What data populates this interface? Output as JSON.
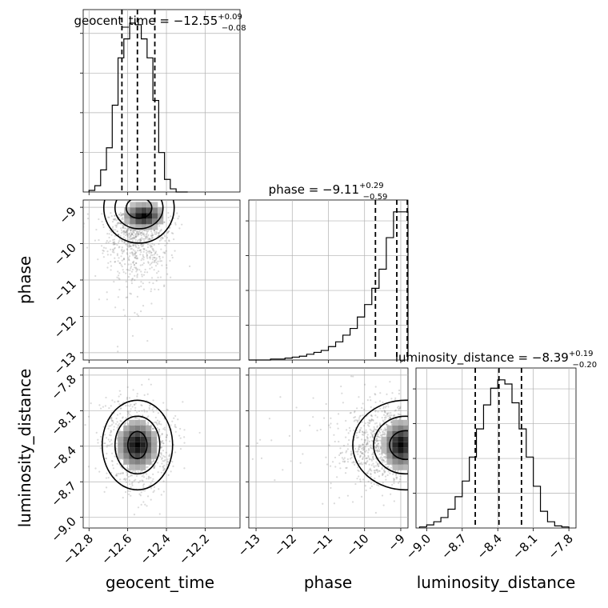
{
  "chart_data": {
    "type": "corner",
    "parameters": [
      "geocent_time",
      "phase",
      "luminosity_distance"
    ],
    "titles": [
      {
        "param": "geocent_time",
        "prefix": "geocent_time = ",
        "median": "−12.55",
        "plus": "+0.09",
        "minus": "−0.08"
      },
      {
        "param": "phase",
        "prefix": "phase = ",
        "median": "−9.11",
        "plus": "+0.29",
        "minus": "−0.59"
      },
      {
        "param": "luminosity_distance",
        "prefix": "luminosity_distance = ",
        "median": "−8.39",
        "plus": "+0.19",
        "minus": "−0.20"
      }
    ],
    "axes": {
      "geocent_time": {
        "range": [
          -12.83,
          -12.02
        ],
        "ticks": [
          -12.8,
          -12.6,
          -12.4,
          -12.2
        ],
        "tick_labels": [
          "−12.8",
          "−12.6",
          "−12.4",
          "−12.2"
        ],
        "quantiles": [
          -12.63,
          -12.55,
          -12.46
        ]
      },
      "phase": {
        "range": [
          -13.2,
          -8.8
        ],
        "ticks": [
          -13,
          -12,
          -11,
          -10,
          -9
        ],
        "tick_labels": [
          "−13",
          "−12",
          "−11",
          "−10",
          "−9"
        ],
        "quantiles": [
          -9.7,
          -9.11,
          -8.82
        ]
      },
      "luminosity_distance": {
        "range": [
          -9.09,
          -7.74
        ],
        "ticks": [
          -9.0,
          -8.7,
          -8.4,
          -8.1,
          -7.8
        ],
        "tick_labels": [
          "−9.0",
          "−8.7",
          "−8.4",
          "−8.1",
          "−7.8"
        ],
        "quantiles": [
          -8.59,
          -8.39,
          -8.2
        ]
      }
    },
    "histograms": {
      "geocent_time": {
        "bin_edges": [
          -12.8,
          -12.77,
          -12.74,
          -12.71,
          -12.68,
          -12.65,
          -12.62,
          -12.59,
          -12.56,
          -12.53,
          -12.5,
          -12.47,
          -12.44,
          -12.41,
          -12.38,
          -12.35,
          -12.32,
          -12.29
        ],
        "counts": [
          1,
          4,
          14,
          28,
          55,
          85,
          97,
          107,
          106,
          97,
          85,
          58,
          25,
          8,
          2,
          0,
          0
        ]
      },
      "phase": {
        "bin_edges": [
          -13.2,
          -13.0,
          -12.8,
          -12.6,
          -12.4,
          -12.2,
          -12.0,
          -11.8,
          -11.6,
          -11.4,
          -11.2,
          -11.0,
          -10.8,
          -10.6,
          -10.4,
          -10.2,
          -10.0,
          -9.8,
          -9.6,
          -9.4,
          -9.2,
          -9.0,
          -8.8
        ],
        "counts": [
          0,
          0,
          0,
          1,
          1,
          2,
          3,
          4,
          6,
          8,
          10,
          14,
          19,
          26,
          33,
          45,
          58,
          75,
          95,
          128,
          155,
          155
        ]
      },
      "luminosity_distance": {
        "bin_edges": [
          -9.06,
          -9.0,
          -8.94,
          -8.88,
          -8.82,
          -8.76,
          -8.7,
          -8.64,
          -8.58,
          -8.52,
          -8.46,
          -8.4,
          -8.34,
          -8.28,
          -8.22,
          -8.16,
          -8.1,
          -8.04,
          -7.98,
          -7.92,
          -7.86,
          -7.8
        ],
        "counts": [
          1,
          3,
          6,
          10,
          18,
          30,
          45,
          68,
          95,
          118,
          134,
          142,
          138,
          120,
          95,
          68,
          40,
          16,
          6,
          2,
          1
        ]
      }
    },
    "scatter_centers": {
      "phase_vs_geocent_time": {
        "x": -12.55,
        "y": -9.15
      },
      "luminosity_distance_vs_geocent_time": {
        "x": -12.55,
        "y": -8.39
      },
      "luminosity_distance_vs_phase": {
        "x": -9.0,
        "y": -8.39
      }
    },
    "axis_labels": {
      "x": [
        "geocent_time",
        "phase",
        "luminosity_distance"
      ],
      "y": [
        "phase",
        "luminosity_distance"
      ]
    },
    "grid": true,
    "colors": {
      "line": "#000000",
      "grid": "#b0b0b0",
      "scatter": "#7a7a7a"
    }
  }
}
